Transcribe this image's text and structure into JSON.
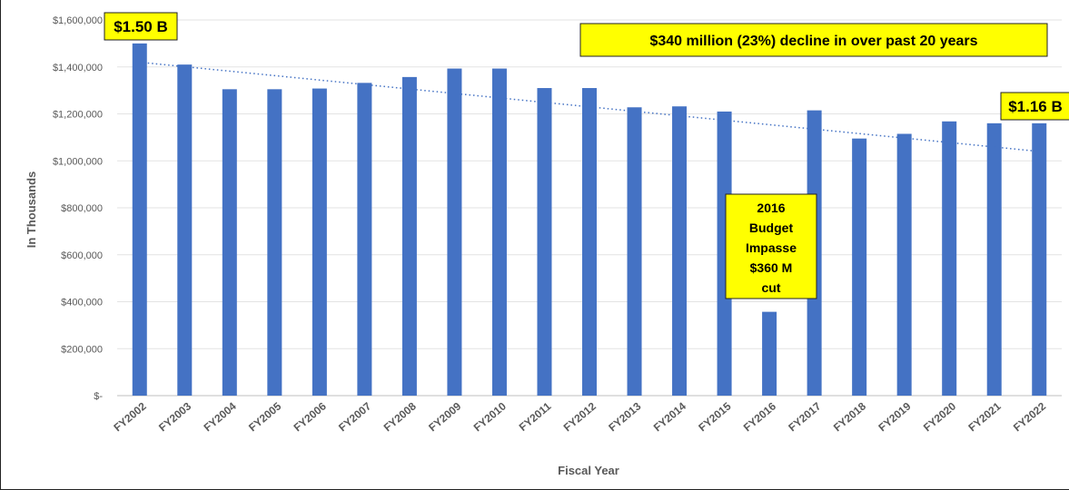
{
  "chart_data": {
    "type": "bar",
    "xlabel": "Fiscal Year",
    "ylabel": "In Thousands",
    "ylim": [
      0,
      1600000
    ],
    "yticks": [
      0,
      200000,
      400000,
      600000,
      800000,
      1000000,
      1200000,
      1400000,
      1600000
    ],
    "ytick_labels": [
      "$-",
      "$200,000",
      "$400,000",
      "$600,000",
      "$800,000",
      "$1,000,000",
      "$1,200,000",
      "$1,400,000",
      "$1,600,000"
    ],
    "grid": true,
    "bar_color": "#4472c4",
    "trendline": {
      "style": "dotted",
      "color": "#4472c4",
      "start_value": 1420000,
      "end_value": 1040000
    },
    "categories": [
      "FY2002",
      "FY2003",
      "FY2004",
      "FY2005",
      "FY2006",
      "FY2007",
      "FY2008",
      "FY2009",
      "FY2010",
      "FY2011",
      "FY2012",
      "FY2013",
      "FY2014",
      "FY2015",
      "FY2016",
      "FY2017",
      "FY2018",
      "FY2019",
      "FY2020",
      "FY2021",
      "FY2022"
    ],
    "values": [
      1500000,
      1410000,
      1305000,
      1305000,
      1308000,
      1332000,
      1357000,
      1393000,
      1393000,
      1310000,
      1310000,
      1228000,
      1232000,
      1210000,
      357000,
      1215000,
      1095000,
      1115000,
      1168000,
      1160000,
      1160000
    ],
    "annotations": [
      {
        "text": "$1.50 B",
        "category": "FY2002"
      },
      {
        "text": "$1.16 B",
        "category": "FY2022"
      },
      {
        "text": "$340 million (23%) decline in over past 20 years"
      },
      {
        "lines": [
          "2016",
          "Budget",
          "Impasse",
          "$360 M",
          "cut"
        ],
        "category": "FY2016"
      }
    ]
  }
}
